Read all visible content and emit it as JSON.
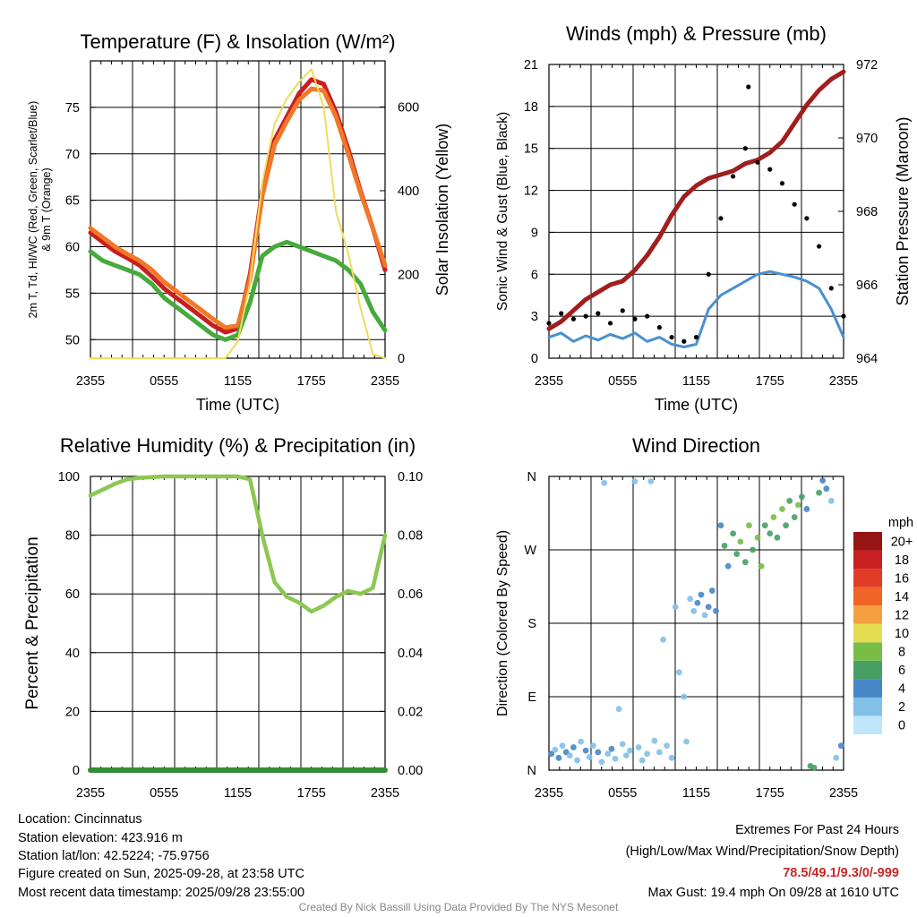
{
  "chart_data": [
    {
      "type": "line",
      "title": "Temperature (F) & Insolation (W/m²)",
      "xlabel": "Time (UTC)",
      "ylabel": "2m T, T<sub>d</sub>, HI/WC (Red, Green, Scarlet/Blue) & 9m T (Orange)",
      "ylabel_line1": "2m T, Td, HI/WC (Red, Green, Scarlet/Blue)",
      "ylabel_line2": "& 9m T (Orange)",
      "y2label": "Solar Insolation (Yellow)",
      "x_ticks": [
        "2355",
        "0555",
        "1155",
        "1755",
        "2355"
      ],
      "ylim": [
        48,
        80
      ],
      "y_ticks": [
        50,
        55,
        60,
        65,
        70,
        75
      ],
      "y2lim": [
        0,
        710
      ],
      "y2_ticks": [
        0,
        200,
        400,
        600
      ],
      "x_hours": [
        0,
        1,
        2,
        3,
        4,
        5,
        6,
        7,
        8,
        9,
        10,
        11,
        12,
        13,
        14,
        15,
        16,
        17,
        18,
        19,
        20,
        21,
        22,
        23,
        24
      ],
      "series": [
        {
          "name": "2m T",
          "color": "#c81e1e",
          "values": [
            61.5,
            60.5,
            59.5,
            58.8,
            58.0,
            56.8,
            55.5,
            54.5,
            53.5,
            52.5,
            51.5,
            50.8,
            51.2,
            57.0,
            66.0,
            71.5,
            74.0,
            76.5,
            78.0,
            77.5,
            74.5,
            70.5,
            66.0,
            62.0,
            57.5
          ]
        },
        {
          "name": "9m T",
          "color": "#f07828",
          "values": [
            62.0,
            61.0,
            60.0,
            59.2,
            58.5,
            57.5,
            56.2,
            55.2,
            54.2,
            53.2,
            52.2,
            51.3,
            51.5,
            56.5,
            65.5,
            71.0,
            73.5,
            75.8,
            77.0,
            76.8,
            74.0,
            70.0,
            65.8,
            62.0,
            58.0
          ]
        },
        {
          "name": "2m Td",
          "color": "#46aa3c",
          "values": [
            59.5,
            58.5,
            58.0,
            57.5,
            57.0,
            56.0,
            54.5,
            53.5,
            52.5,
            51.5,
            50.5,
            50.0,
            50.5,
            54.0,
            59.0,
            60.0,
            60.5,
            60.0,
            59.5,
            59.0,
            58.5,
            57.5,
            56.0,
            53.0,
            51.0
          ]
        },
        {
          "name": "Solar Insolation",
          "axis": "y2",
          "color": "#f0dc5a",
          "values": [
            0,
            0,
            0,
            0,
            0,
            0,
            0,
            0,
            0,
            0,
            0,
            0,
            40,
            180,
            420,
            560,
            620,
            660,
            690,
            600,
            350,
            250,
            120,
            10,
            0
          ]
        }
      ]
    },
    {
      "type": "line",
      "title": "Winds (mph) & Pressure (mb)",
      "xlabel": "Time (UTC)",
      "ylabel": "Sonic Wind & Gust (Blue, Black)",
      "y2label": "Station Pressure (Maroon)",
      "x_ticks": [
        "2355",
        "0555",
        "1155",
        "1755",
        "2355"
      ],
      "ylim": [
        0,
        21
      ],
      "y_ticks": [
        0,
        3,
        6,
        9,
        12,
        15,
        18,
        21
      ],
      "y2lim": [
        964,
        972
      ],
      "y2_ticks": [
        964,
        966,
        968,
        970,
        972
      ],
      "x_hours": [
        0,
        1,
        2,
        3,
        4,
        5,
        6,
        7,
        8,
        9,
        10,
        11,
        12,
        13,
        14,
        15,
        16,
        17,
        18,
        19,
        20,
        21,
        22,
        23,
        24
      ],
      "series": [
        {
          "name": "Sonic Wind",
          "color": "#4a90d0",
          "values": [
            1.5,
            1.8,
            1.2,
            1.6,
            1.3,
            1.7,
            1.4,
            1.8,
            1.2,
            1.5,
            1.0,
            0.8,
            1.0,
            3.5,
            4.5,
            5.0,
            5.5,
            6.0,
            6.2,
            6.0,
            5.8,
            5.5,
            5.0,
            3.5,
            1.5
          ]
        },
        {
          "name": "Gust",
          "color": "#000000",
          "values": [
            2.5,
            3.2,
            2.8,
            3.0,
            3.2,
            2.5,
            3.4,
            2.8,
            3.0,
            2.2,
            1.5,
            1.2,
            1.5,
            6.0,
            10.0,
            13.0,
            15.0,
            14.0,
            13.5,
            12.5,
            11.0,
            10.0,
            8.0,
            5.0,
            3.0
          ]
        },
        {
          "name": "Station Pressure",
          "axis": "y2",
          "color": "#a01e1e",
          "values": [
            964.8,
            965.0,
            965.3,
            965.6,
            965.8,
            966.0,
            966.1,
            966.4,
            966.8,
            967.3,
            967.9,
            968.4,
            968.7,
            968.9,
            969.0,
            969.1,
            969.3,
            969.4,
            969.6,
            969.9,
            970.4,
            970.9,
            971.3,
            971.6,
            971.8
          ]
        }
      ],
      "gust_peak": 19.4
    },
    {
      "type": "line",
      "title": "Relative Humidity (%) & Precipitation (in)",
      "ylabel": "Percent & Precipitation",
      "x_ticks": [
        "2355",
        "0555",
        "1155",
        "1755",
        "2355"
      ],
      "ylim": [
        0,
        100
      ],
      "y_ticks": [
        0,
        20,
        40,
        60,
        80,
        100
      ],
      "y2lim": [
        0,
        0.1
      ],
      "y2_ticks": [
        "0.00",
        "0.02",
        "0.04",
        "0.06",
        "0.08",
        "0.10"
      ],
      "x_hours": [
        0,
        1,
        2,
        3,
        4,
        5,
        6,
        7,
        8,
        9,
        10,
        11,
        12,
        13,
        14,
        15,
        16,
        17,
        18,
        19,
        20,
        21,
        22,
        23,
        24
      ],
      "series": [
        {
          "name": "Relative Humidity",
          "color": "#8cc850",
          "values": [
            93.5,
            95.5,
            97.5,
            99.0,
            99.5,
            99.8,
            100,
            100,
            100,
            100,
            100,
            100,
            100,
            99.0,
            80.0,
            64.0,
            59.0,
            57.0,
            54.0,
            56.0,
            59.0,
            61.0,
            60.0,
            62.0,
            80.0
          ]
        },
        {
          "name": "Precipitation",
          "axis": "y2",
          "color": "#328c32",
          "values": [
            0,
            0,
            0,
            0,
            0,
            0,
            0,
            0,
            0,
            0,
            0,
            0,
            0,
            0,
            0,
            0,
            0,
            0,
            0,
            0,
            0,
            0,
            0,
            0,
            0
          ]
        }
      ]
    },
    {
      "type": "scatter",
      "title": "Wind Direction",
      "ylabel": "Direction (Colored By Speed)",
      "x_ticks": [
        "2355",
        "0555",
        "1155",
        "1755",
        "2355"
      ],
      "y_ticks": [
        "N",
        "E",
        "S",
        "W",
        "N"
      ],
      "ylim": [
        0,
        360
      ],
      "colorbar_unit": "mph",
      "colorbar_labels": [
        "0",
        "2",
        "4",
        "6",
        "8",
        "10",
        "12",
        "14",
        "16",
        "18",
        "20+"
      ],
      "colorbar_colors": [
        "#bfe6fa",
        "#82c0e8",
        "#4686c6",
        "#46a064",
        "#78be46",
        "#e6dc50",
        "#f5a040",
        "#f06428",
        "#e03c28",
        "#c82020",
        "#961414"
      ],
      "points": [
        {
          "h": 0.2,
          "dir": 20,
          "spd": 3
        },
        {
          "h": 0.5,
          "dir": 25,
          "spd": 2
        },
        {
          "h": 0.8,
          "dir": 15,
          "spd": 4
        },
        {
          "h": 1.1,
          "dir": 30,
          "spd": 2
        },
        {
          "h": 1.4,
          "dir": 22,
          "spd": 3
        },
        {
          "h": 1.7,
          "dir": 18,
          "spd": 2
        },
        {
          "h": 2.0,
          "dir": 28,
          "spd": 3
        },
        {
          "h": 2.3,
          "dir": 12,
          "spd": 1
        },
        {
          "h": 2.6,
          "dir": 35,
          "spd": 2
        },
        {
          "h": 3.0,
          "dir": 24,
          "spd": 3
        },
        {
          "h": 3.3,
          "dir": 16,
          "spd": 2
        },
        {
          "h": 3.6,
          "dir": 30,
          "spd": 1
        },
        {
          "h": 4.0,
          "dir": 22,
          "spd": 3
        },
        {
          "h": 4.3,
          "dir": 10,
          "spd": 1
        },
        {
          "h": 4.5,
          "dir": 352,
          "spd": 1
        },
        {
          "h": 4.8,
          "dir": 20,
          "spd": 2
        },
        {
          "h": 5.1,
          "dir": 26,
          "spd": 3
        },
        {
          "h": 5.4,
          "dir": 14,
          "spd": 1
        },
        {
          "h": 5.7,
          "dir": 75,
          "spd": 1
        },
        {
          "h": 6.0,
          "dir": 32,
          "spd": 2
        },
        {
          "h": 6.3,
          "dir": 18,
          "spd": 1
        },
        {
          "h": 6.6,
          "dir": 24,
          "spd": 2
        },
        {
          "h": 7.0,
          "dir": 354,
          "spd": 1
        },
        {
          "h": 7.3,
          "dir": 28,
          "spd": 2
        },
        {
          "h": 7.6,
          "dir": 12,
          "spd": 1
        },
        {
          "h": 8.0,
          "dir": 20,
          "spd": 2
        },
        {
          "h": 8.3,
          "dir": 354,
          "spd": 1
        },
        {
          "h": 8.6,
          "dir": 36,
          "spd": 1
        },
        {
          "h": 9.0,
          "dir": 22,
          "spd": 2
        },
        {
          "h": 9.3,
          "dir": 160,
          "spd": 1
        },
        {
          "h": 9.6,
          "dir": 30,
          "spd": 1
        },
        {
          "h": 10.0,
          "dir": 15,
          "spd": 1
        },
        {
          "h": 10.3,
          "dir": 200,
          "spd": 2
        },
        {
          "h": 10.6,
          "dir": 120,
          "spd": 1
        },
        {
          "h": 11.0,
          "dir": 90,
          "spd": 1
        },
        {
          "h": 11.2,
          "dir": 35,
          "spd": 1
        },
        {
          "h": 11.5,
          "dir": 210,
          "spd": 2
        },
        {
          "h": 11.8,
          "dir": 195,
          "spd": 1
        },
        {
          "h": 12.1,
          "dir": 205,
          "spd": 3
        },
        {
          "h": 12.4,
          "dir": 215,
          "spd": 4
        },
        {
          "h": 12.7,
          "dir": 190,
          "spd": 2
        },
        {
          "h": 13.0,
          "dir": 200,
          "spd": 4
        },
        {
          "h": 13.3,
          "dir": 220,
          "spd": 4
        },
        {
          "h": 13.6,
          "dir": 195,
          "spd": 3
        },
        {
          "h": 14.0,
          "dir": 300,
          "spd": 4
        },
        {
          "h": 14.3,
          "dir": 275,
          "spd": 5
        },
        {
          "h": 14.6,
          "dir": 250,
          "spd": 4
        },
        {
          "h": 15.0,
          "dir": 290,
          "spd": 6
        },
        {
          "h": 15.3,
          "dir": 265,
          "spd": 5
        },
        {
          "h": 15.6,
          "dir": 280,
          "spd": 7
        },
        {
          "h": 16.0,
          "dir": 255,
          "spd": 6
        },
        {
          "h": 16.3,
          "dir": 300,
          "spd": 8
        },
        {
          "h": 16.6,
          "dir": 270,
          "spd": 6
        },
        {
          "h": 17.0,
          "dir": 285,
          "spd": 7
        },
        {
          "h": 17.3,
          "dir": 250,
          "spd": 8
        },
        {
          "h": 17.6,
          "dir": 300,
          "spd": 6
        },
        {
          "h": 18.0,
          "dir": 290,
          "spd": 5
        },
        {
          "h": 18.3,
          "dir": 310,
          "spd": 7
        },
        {
          "h": 18.6,
          "dir": 285,
          "spd": 6
        },
        {
          "h": 19.0,
          "dir": 320,
          "spd": 8
        },
        {
          "h": 19.3,
          "dir": 300,
          "spd": 6
        },
        {
          "h": 19.6,
          "dir": 330,
          "spd": 5
        },
        {
          "h": 20.0,
          "dir": 310,
          "spd": 6
        },
        {
          "h": 20.3,
          "dir": 325,
          "spd": 7
        },
        {
          "h": 20.6,
          "dir": 335,
          "spd": 5
        },
        {
          "h": 21.0,
          "dir": 320,
          "spd": 4
        },
        {
          "h": 21.3,
          "dir": 5,
          "spd": 5
        },
        {
          "h": 21.6,
          "dir": 3,
          "spd": 6
        },
        {
          "h": 22.0,
          "dir": 340,
          "spd": 5
        },
        {
          "h": 22.3,
          "dir": 355,
          "spd": 4
        },
        {
          "h": 22.6,
          "dir": 345,
          "spd": 3
        },
        {
          "h": 23.0,
          "dir": 330,
          "spd": 2
        },
        {
          "h": 23.4,
          "dir": 15,
          "spd": 2
        },
        {
          "h": 23.8,
          "dir": 30,
          "spd": 3
        }
      ]
    }
  ],
  "info": {
    "location": "Location: Cincinnatus",
    "elevation": "Station elevation: 423.916 m",
    "latlon": "Station lat/lon: 42.5224; -75.9756",
    "created": "Figure created on Sun, 2025-09-28, at 23:58 UTC",
    "recent": "Most recent data timestamp: 2025/09/28 23:55:00"
  },
  "extremes": {
    "title": "Extremes For Past 24 Hours",
    "subtitle": "(High/Low/Max Wind/Precipitation/Snow Depth)",
    "values": "78.5/49.1/9.3/0/-999",
    "values_color": "#c82828",
    "max_gust": "Max Gust: 19.4 mph On 09/28 at 1610 UTC"
  },
  "credit": "Created By Nick Bassill Using Data Provided By The NYS Mesonet"
}
